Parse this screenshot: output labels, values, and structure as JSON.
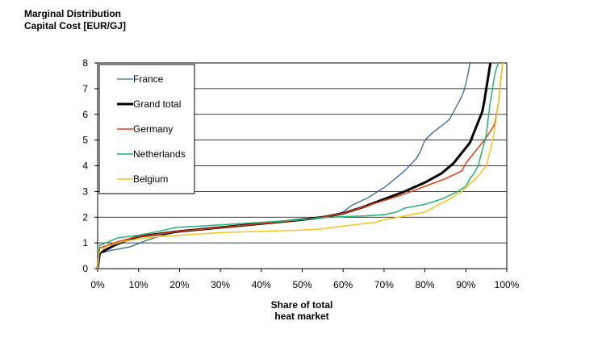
{
  "chart_data": {
    "type": "line",
    "ylabel": [
      "Marginal Distribution",
      "Capital Cost [EUR/GJ]"
    ],
    "xlabel": [
      "Share of total",
      "heat market"
    ],
    "xlim": [
      0,
      100
    ],
    "ylim": [
      0,
      8
    ],
    "x_ticks": [
      "0%",
      "10%",
      "20%",
      "30%",
      "40%",
      "50%",
      "60%",
      "70%",
      "80%",
      "90%",
      "100%"
    ],
    "y_ticks": [
      "0",
      "1",
      "2",
      "3",
      "4",
      "5",
      "6",
      "7",
      "8"
    ],
    "grid": "horizontal",
    "legend_position": "top-left",
    "series": [
      {
        "name": "France",
        "color": "#336699",
        "width": 1.3,
        "x": [
          0,
          0.5,
          3,
          8,
          12,
          16,
          19,
          25,
          35,
          45,
          52,
          58,
          60,
          62,
          66,
          70,
          72,
          75,
          78,
          79,
          80,
          82,
          84,
          86,
          87,
          88,
          89,
          89.5,
          90,
          90.5,
          91
        ],
        "y": [
          0,
          0.6,
          0.7,
          0.85,
          1.1,
          1.3,
          1.4,
          1.55,
          1.7,
          1.85,
          1.95,
          2.1,
          2.2,
          2.45,
          2.75,
          3.15,
          3.4,
          3.8,
          4.3,
          4.6,
          5.0,
          5.3,
          5.55,
          5.8,
          6.1,
          6.4,
          6.7,
          6.9,
          7.2,
          7.55,
          8.0
        ]
      },
      {
        "name": "Grand total",
        "color": "#000000",
        "width": 3,
        "x": [
          0,
          0.5,
          4,
          7,
          10,
          15,
          20,
          30,
          40,
          50,
          55,
          60,
          65,
          70,
          75,
          80,
          84,
          87,
          89,
          91,
          92,
          93,
          94,
          94.5,
          95,
          95.5,
          96
        ],
        "y": [
          0,
          0.6,
          0.9,
          1.1,
          1.25,
          1.35,
          1.45,
          1.6,
          1.75,
          1.9,
          2.0,
          2.15,
          2.4,
          2.7,
          3.0,
          3.35,
          3.7,
          4.1,
          4.5,
          4.9,
          5.3,
          5.7,
          6.1,
          6.5,
          7.0,
          7.5,
          8.0
        ]
      },
      {
        "name": "Germany",
        "color": "#e03c12",
        "width": 1.5,
        "x": [
          0,
          0.5,
          5,
          10,
          20,
          30,
          40,
          50,
          55,
          60,
          65,
          70,
          75,
          80,
          85,
          89,
          90,
          91,
          92,
          93,
          94,
          95,
          96,
          97,
          97.5,
          98,
          98.5,
          99
        ],
        "y": [
          0,
          0.8,
          1.05,
          1.25,
          1.45,
          1.6,
          1.75,
          1.9,
          2.0,
          2.15,
          2.4,
          2.65,
          2.9,
          3.2,
          3.5,
          3.8,
          4.1,
          4.3,
          4.5,
          4.7,
          4.9,
          5.1,
          5.35,
          5.6,
          6.0,
          6.5,
          7.3,
          8.0
        ]
      },
      {
        "name": "Netherlands",
        "color": "#1fb273",
        "width": 1.5,
        "x": [
          0,
          0.5,
          2,
          5,
          10,
          15,
          19,
          30,
          40,
          50,
          55,
          60,
          65,
          70,
          73,
          75,
          80,
          84,
          88,
          90,
          91,
          92,
          93,
          94,
          95,
          95.5,
          96,
          96.5,
          97,
          97.5,
          98
        ],
        "y": [
          0,
          0.9,
          1.0,
          1.2,
          1.3,
          1.45,
          1.6,
          1.7,
          1.8,
          1.9,
          1.98,
          2.02,
          2.05,
          2.1,
          2.2,
          2.35,
          2.5,
          2.7,
          3.0,
          3.2,
          3.5,
          3.7,
          4.0,
          4.6,
          5.2,
          5.9,
          6.5,
          7.0,
          7.5,
          7.8,
          8.0
        ]
      },
      {
        "name": "Belgium",
        "color": "#f6c51b",
        "width": 1.5,
        "x": [
          0,
          0.3,
          2,
          6,
          10,
          15,
          20,
          30,
          40,
          50,
          55,
          60,
          65,
          68,
          70,
          75,
          80,
          83,
          86,
          89,
          91,
          93,
          95,
          96,
          97,
          98,
          98.5,
          99
        ],
        "y": [
          0,
          0.6,
          0.85,
          1.05,
          1.15,
          1.25,
          1.3,
          1.4,
          1.45,
          1.5,
          1.55,
          1.65,
          1.75,
          1.8,
          1.9,
          2.05,
          2.2,
          2.45,
          2.7,
          3.0,
          3.3,
          3.6,
          4.0,
          4.6,
          5.4,
          6.5,
          7.3,
          8.0
        ]
      }
    ]
  }
}
